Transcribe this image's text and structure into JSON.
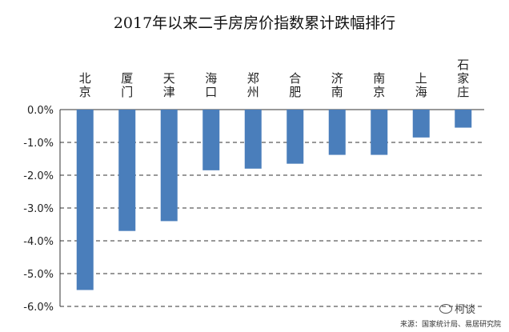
{
  "chart_data": {
    "type": "bar",
    "title": "2017年以来二手房房价指数累计跌幅排行",
    "categories": [
      "北京",
      "厦门",
      "天津",
      "海口",
      "郑州",
      "合肥",
      "济南",
      "南京",
      "上海",
      "石家庄"
    ],
    "values": [
      -5.5,
      -3.7,
      -3.4,
      -1.85,
      -1.8,
      -1.65,
      -1.38,
      -1.38,
      -0.85,
      -0.55
    ],
    "ylim": [
      -6.0,
      0.0
    ],
    "yticks": [
      "0.0%",
      "-1.0%",
      "-2.0%",
      "-3.0%",
      "-4.0%",
      "-5.0%",
      "-6.0%"
    ],
    "ytick_values": [
      0,
      -1,
      -2,
      -3,
      -4,
      -5,
      -6
    ],
    "bar_color": "#4a7ebb",
    "grid": "dashed horizontal",
    "category_label_position": "top, vertical"
  },
  "source": "来源：国家统计局、易居研究院",
  "watermark": "柯谈"
}
